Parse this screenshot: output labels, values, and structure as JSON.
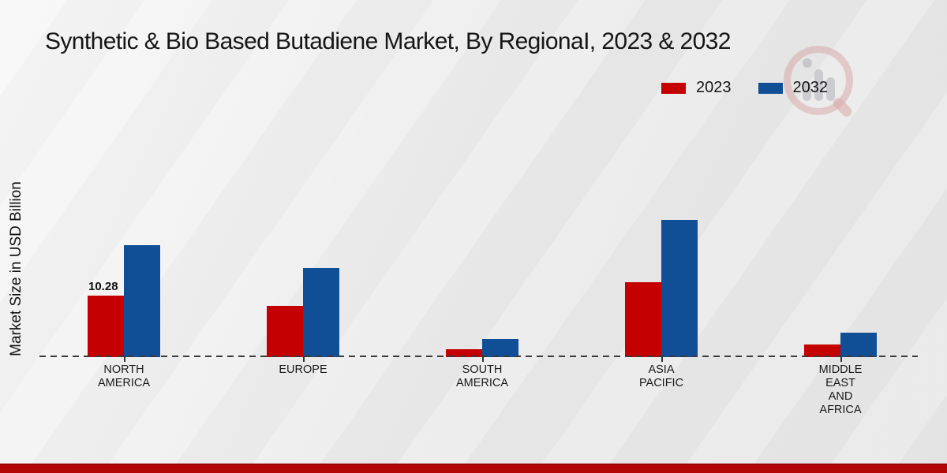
{
  "page": {
    "title": "Synthetic & Bio Based Butadiene Market, By RegionaI, 2023 & 2032"
  },
  "chart_data": {
    "type": "bar",
    "title": "Synthetic & Bio Based Butadiene Market, By RegionaI, 2023 & 2032",
    "xlabel": "",
    "ylabel": "Market Size in USD Billion",
    "categories": [
      "NORTH AMERICA",
      "EUROPE",
      "SOUTH AMERICA",
      "ASIA PACIFIC",
      "MIDDLE EAST AND AFRICA"
    ],
    "series": [
      {
        "name": "2023",
        "color": "#c40000",
        "values": [
          10.28,
          8.6,
          1.3,
          12.5,
          2.1
        ]
      },
      {
        "name": "2032",
        "color": "#104f96",
        "values": [
          18.7,
          14.9,
          3.0,
          22.9,
          4.1
        ]
      }
    ],
    "data_labels": [
      {
        "series": "2023",
        "category_index": 0,
        "text": "10.28"
      }
    ],
    "ylim": [
      0,
      24
    ],
    "grid": false,
    "legend_position": "top-right",
    "baseline_style": "dashed",
    "colors": {
      "accent_red": "#c40000",
      "accent_blue": "#104f96",
      "footer_strip": "#b30505"
    }
  }
}
